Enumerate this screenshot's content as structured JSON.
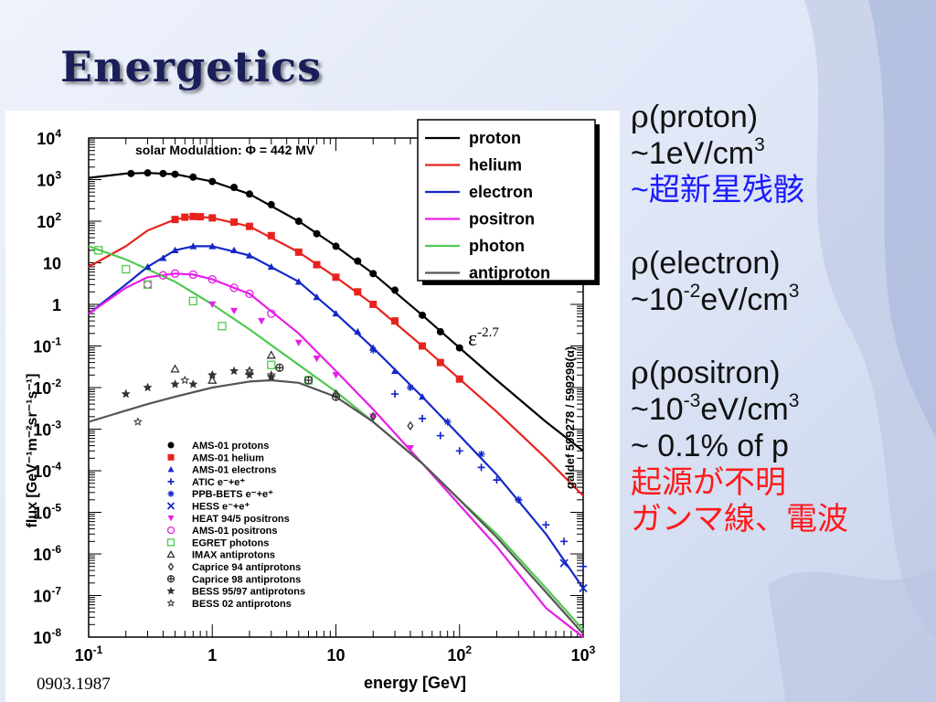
{
  "title": "Energetics",
  "footnote": "0903.1987",
  "spectral_annotation": {
    "symbol": "ε",
    "exponent": "-2.7"
  },
  "right_panel": {
    "proton": {
      "label": "(proton)",
      "rho_symbol": "ρ",
      "density_value": "~1eV/cm",
      "density_exp": "3",
      "origin": "~超新星残骸"
    },
    "electron": {
      "label": "(electron)",
      "rho_symbol": "ρ",
      "density_prefix": "~10",
      "density_exp": "-2",
      "density_unit": "eV/cm",
      "density_unit_exp": "3"
    },
    "positron": {
      "label": "(positron)",
      "rho_symbol": "ρ",
      "density_prefix": "~10",
      "density_exp": "-3",
      "density_unit": "eV/cm",
      "density_unit_exp": "3",
      "fraction": "~ 0.1% of p",
      "note_line1": "起源が不明",
      "note_line2": "ガンマ線、電波"
    }
  },
  "colors": {
    "title": "#1a1f5a",
    "blue_text": "#1b1bff",
    "red_text": "#ff1a1a",
    "proton": "#000000",
    "helium": "#e8231e",
    "electron": "#1428c8",
    "positron": "#e61ee6",
    "photon": "#50c850",
    "antiproton": "#555555"
  },
  "chart_data": {
    "type": "scatter",
    "annotation": "solar Modulation: Φ = 442 MV",
    "side_label": "galdef 599278 / 599298(α)",
    "xlabel": "energy [GeV]",
    "ylabel": "flux [GeV⁻¹m⁻²sr⁻¹s⁻¹]",
    "x_scale": "log",
    "y_scale": "log",
    "xlim": [
      0.1,
      1000
    ],
    "ylim": [
      1e-08,
      10000
    ],
    "x_ticks": [
      {
        "v": 0.1,
        "m": "10",
        "e": "-1"
      },
      {
        "v": 1,
        "m": "1",
        "e": ""
      },
      {
        "v": 10,
        "m": "10",
        "e": ""
      },
      {
        "v": 100,
        "m": "10",
        "e": "2"
      },
      {
        "v": 1000,
        "m": "10",
        "e": "3"
      }
    ],
    "y_ticks": [
      {
        "v": 1e-08,
        "m": "10",
        "e": "-8"
      },
      {
        "v": 1e-07,
        "m": "10",
        "e": "-7"
      },
      {
        "v": 1e-06,
        "m": "10",
        "e": "-6"
      },
      {
        "v": 1e-05,
        "m": "10",
        "e": "-5"
      },
      {
        "v": 0.0001,
        "m": "10",
        "e": "-4"
      },
      {
        "v": 0.001,
        "m": "10",
        "e": "-3"
      },
      {
        "v": 0.01,
        "m": "10",
        "e": "-2"
      },
      {
        "v": 0.1,
        "m": "10",
        "e": "-1"
      },
      {
        "v": 1,
        "m": "1",
        "e": ""
      },
      {
        "v": 10,
        "m": "10",
        "e": ""
      },
      {
        "v": 100,
        "m": "10",
        "e": "2"
      },
      {
        "v": 1000,
        "m": "10",
        "e": "3"
      },
      {
        "v": 10000,
        "m": "10",
        "e": "4"
      }
    ],
    "legend_placement": "top-right",
    "series": [
      {
        "name": "proton",
        "color": "#000000",
        "x": [
          0.1,
          0.2,
          0.3,
          0.5,
          1,
          2,
          5,
          10,
          20,
          50,
          100,
          200,
          500,
          1000
        ],
        "y": [
          1100,
          1400,
          1450,
          1350,
          900,
          450,
          100,
          25,
          5.5,
          0.55,
          0.09,
          0.015,
          0.0015,
          0.0003
        ]
      },
      {
        "name": "helium",
        "color": "#e8231e",
        "x": [
          0.1,
          0.2,
          0.3,
          0.5,
          0.7,
          1,
          2,
          5,
          10,
          20,
          50,
          100,
          200,
          500,
          1000
        ],
        "y": [
          8,
          25,
          60,
          110,
          130,
          120,
          75,
          18,
          4.5,
          1.0,
          0.1,
          0.016,
          0.0026,
          0.0002,
          2.5e-05
        ]
      },
      {
        "name": "electron",
        "color": "#1428c8",
        "x": [
          0.1,
          0.2,
          0.3,
          0.5,
          0.7,
          1,
          2,
          5,
          10,
          20,
          50,
          100,
          200,
          500,
          1000
        ],
        "y": [
          0.6,
          3,
          8,
          20,
          25,
          25,
          15,
          3.5,
          0.6,
          0.09,
          0.006,
          0.0007,
          8e-05,
          3e-06,
          1.5e-07
        ]
      },
      {
        "name": "positron",
        "color": "#e61ee6",
        "x": [
          0.1,
          0.2,
          0.3,
          0.5,
          0.7,
          1,
          2,
          5,
          10,
          20,
          50,
          100,
          200,
          500,
          1000
        ],
        "y": [
          0.6,
          2.5,
          4.5,
          5.5,
          5.2,
          4,
          1.8,
          0.2,
          0.025,
          0.003,
          0.00015,
          1.5e-05,
          1.5e-06,
          5e-08,
          5e-09
        ]
      },
      {
        "name": "photon",
        "color": "#50c850",
        "x": [
          0.1,
          0.2,
          0.3,
          0.5,
          1,
          2,
          5,
          10,
          20,
          50,
          100,
          200,
          500,
          1000
        ],
        "y": [
          25,
          12,
          7,
          3.5,
          1.0,
          0.25,
          0.035,
          0.008,
          0.0015,
          0.00015,
          2e-05,
          3e-06,
          1.5e-07,
          1.5e-08
        ]
      },
      {
        "name": "antiproton",
        "color": "#555555",
        "x": [
          0.1,
          0.2,
          0.3,
          0.5,
          1,
          2,
          3,
          5,
          10,
          20,
          50,
          100,
          200,
          500,
          1000
        ],
        "y": [
          0.0015,
          0.0028,
          0.004,
          0.006,
          0.01,
          0.014,
          0.015,
          0.013,
          0.006,
          0.0015,
          0.00015,
          2e-05,
          2.5e-06,
          1.2e-07,
          1.2e-08
        ]
      }
    ],
    "data_points": [
      {
        "name": "AMS-01 protons",
        "symbol": "circle",
        "color": "#000000",
        "x": [
          0.22,
          0.3,
          0.4,
          0.5,
          0.7,
          1,
          1.5,
          2,
          3,
          5,
          7,
          10,
          15,
          20,
          30,
          50,
          70,
          100
        ],
        "y": [
          1400,
          1450,
          1400,
          1350,
          1150,
          900,
          650,
          450,
          250,
          100,
          50,
          25,
          11,
          5.5,
          2.2,
          0.55,
          0.22,
          0.09
        ]
      },
      {
        "name": "AMS-01 helium",
        "symbol": "square",
        "color": "#e8231e",
        "x": [
          0.5,
          0.6,
          0.7,
          0.8,
          1,
          1.5,
          2,
          3,
          5,
          7,
          10,
          15,
          20,
          30,
          50,
          70,
          100
        ],
        "y": [
          110,
          125,
          130,
          128,
          120,
          95,
          75,
          45,
          18,
          9,
          4.5,
          2.0,
          1.0,
          0.4,
          0.1,
          0.04,
          0.016
        ]
      },
      {
        "name": "AMS-01 electrons",
        "symbol": "triangle",
        "color": "#1428c8",
        "x": [
          0.3,
          0.4,
          0.5,
          0.7,
          1,
          1.5,
          2,
          3,
          5,
          7,
          10,
          15,
          20,
          30,
          50
        ],
        "y": [
          8,
          13,
          20,
          25,
          25,
          20,
          15,
          8,
          3.5,
          1.5,
          0.6,
          0.22,
          0.09,
          0.025,
          0.006
        ]
      },
      {
        "name": "ATIC e⁻+e⁺",
        "symbol": "plus",
        "color": "#1428c8",
        "x": [
          30,
          50,
          70,
          100,
          150,
          200,
          300,
          500,
          700,
          1000
        ],
        "y": [
          0.007,
          0.0018,
          0.0007,
          0.0003,
          0.00012,
          6e-05,
          2e-05,
          5e-06,
          2e-06,
          5e-07
        ]
      },
      {
        "name": "PPB-BETS e⁻+e⁺",
        "symbol": "asterisk",
        "color": "#1428c8",
        "x": [
          20,
          40,
          80,
          150,
          300
        ],
        "y": [
          0.08,
          0.01,
          0.0015,
          0.00025,
          2e-05
        ]
      },
      {
        "name": "HESS e⁻+e⁺",
        "symbol": "cross",
        "color": "#1428c8",
        "x": [
          700,
          1000
        ],
        "y": [
          6e-07,
          1.5e-07
        ]
      },
      {
        "name": "HEAT 94/5 positrons",
        "symbol": "triangle-down",
        "color": "#e61ee6",
        "x": [
          1,
          1.5,
          2.5,
          5,
          7,
          10,
          20,
          40
        ],
        "y": [
          1,
          0.7,
          0.4,
          0.12,
          0.05,
          0.02,
          0.002,
          0.00035
        ]
      },
      {
        "name": "AMS-01 positrons",
        "symbol": "circle-open",
        "color": "#e61ee6",
        "x": [
          0.3,
          0.4,
          0.5,
          0.7,
          1,
          1.5,
          2,
          3
        ],
        "y": [
          3,
          5,
          5.5,
          5.2,
          4,
          2.5,
          1.8,
          0.6
        ]
      },
      {
        "name": "EGRET photons",
        "symbol": "square-open",
        "color": "#50c850",
        "x": [
          0.12,
          0.2,
          0.3,
          0.7,
          1.2,
          3,
          6
        ],
        "y": [
          20,
          7,
          3,
          1.2,
          0.3,
          0.035,
          0.015
        ]
      },
      {
        "name": "IMAX antiprotons",
        "symbol": "triangle-open",
        "color": "#333333",
        "x": [
          0.5,
          1,
          2,
          3
        ],
        "y": [
          0.028,
          0.015,
          0.025,
          0.06
        ]
      },
      {
        "name": "Caprice 94 antiprotons",
        "symbol": "diamond-open",
        "color": "#333333",
        "x": [
          10,
          20,
          40
        ],
        "y": [
          0.007,
          0.002,
          0.0012
        ]
      },
      {
        "name": "Caprice 98 antiprotons",
        "symbol": "circle-plus",
        "color": "#333333",
        "x": [
          3.5,
          6,
          10
        ],
        "y": [
          0.03,
          0.015,
          0.006
        ]
      },
      {
        "name": "BESS 95/97 antiprotons",
        "symbol": "star",
        "color": "#333333",
        "x": [
          0.2,
          0.3,
          0.5,
          0.7,
          1,
          1.5,
          2,
          3
        ],
        "y": [
          0.007,
          0.01,
          0.012,
          0.012,
          0.02,
          0.025,
          0.02,
          0.018
        ]
      },
      {
        "name": "BESS 02 antiprotons",
        "symbol": "star-open",
        "color": "#333333",
        "x": [
          0.25,
          0.6,
          1,
          2,
          3
        ],
        "y": [
          0.0015,
          0.015,
          0.02,
          0.025,
          0.02
        ]
      }
    ]
  }
}
